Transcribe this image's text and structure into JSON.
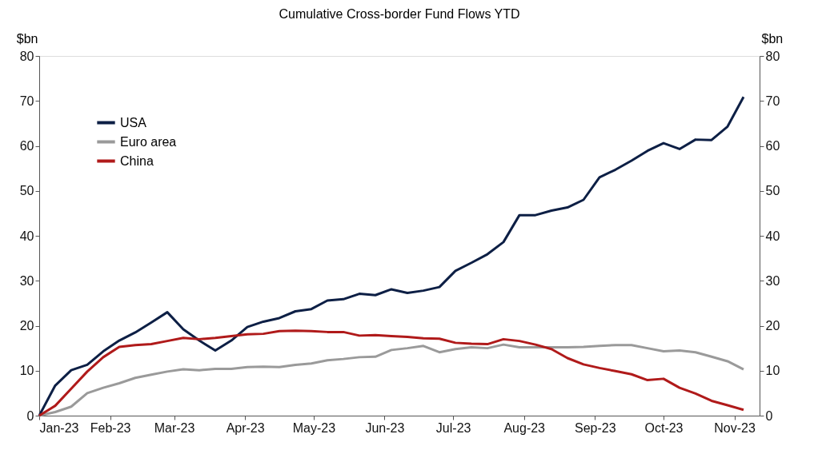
{
  "chart_data": {
    "type": "line",
    "title": "Cumulative Cross-border Fund Flows YTD",
    "ylabel": "$bn",
    "y2label": "$bn",
    "x": [
      "2023-01-01",
      "2023-01-08",
      "2023-01-15",
      "2023-01-22",
      "2023-01-29",
      "2023-02-05",
      "2023-02-12",
      "2023-02-19",
      "2023-02-26",
      "2023-03-05",
      "2023-03-12",
      "2023-03-19",
      "2023-03-26",
      "2023-04-02",
      "2023-04-09",
      "2023-04-16",
      "2023-04-23",
      "2023-04-30",
      "2023-05-07",
      "2023-05-14",
      "2023-05-21",
      "2023-05-28",
      "2023-06-04",
      "2023-06-11",
      "2023-06-18",
      "2023-06-25",
      "2023-07-02",
      "2023-07-09",
      "2023-07-16",
      "2023-07-23",
      "2023-07-30",
      "2023-08-06",
      "2023-08-13",
      "2023-08-20",
      "2023-08-27",
      "2023-09-03",
      "2023-09-10",
      "2023-09-17",
      "2023-09-24",
      "2023-10-01",
      "2023-10-08",
      "2023-10-15",
      "2023-10-22",
      "2023-10-29",
      "2023-11-05"
    ],
    "series": [
      {
        "name": "USA",
        "color": "#0d1f45",
        "values": [
          0,
          6.7,
          10.1,
          11.3,
          14.3,
          16.7,
          18.5,
          20.7,
          23,
          19.2,
          16.7,
          14.5,
          16.7,
          19.7,
          20.9,
          21.7,
          23.2,
          23.7,
          25.6,
          25.9,
          27.1,
          26.8,
          28.1,
          27.3,
          27.8,
          28.6,
          32.2,
          34,
          35.9,
          38.6,
          44.6,
          44.6,
          45.6,
          46.3,
          48,
          53,
          54.7,
          56.7,
          58.9,
          60.6,
          59.3,
          61.4,
          61.3,
          64.3,
          70.9
        ]
      },
      {
        "name": "Euro area",
        "color": "#9a9a9a",
        "values": [
          0,
          0.8,
          2,
          5,
          6.2,
          7.2,
          8.4,
          9.1,
          9.8,
          10.3,
          10.1,
          10.4,
          10.4,
          10.8,
          10.9,
          10.8,
          11.3,
          11.6,
          12.3,
          12.6,
          13,
          13.1,
          14.6,
          15,
          15.5,
          14.1,
          14.8,
          15.2,
          15,
          15.8,
          15.2,
          15.2,
          15.2,
          15.2,
          15.3,
          15.5,
          15.7,
          15.7,
          15,
          14.3,
          14.5,
          14.1,
          13.1,
          12.1,
          10.3
        ]
      },
      {
        "name": "China",
        "color": "#b01a1a",
        "values": [
          0,
          2.2,
          6,
          9.8,
          13,
          15.3,
          15.7,
          15.9,
          16.6,
          17.3,
          17,
          17.3,
          17.7,
          18.1,
          18.2,
          18.8,
          18.9,
          18.8,
          18.6,
          18.6,
          17.8,
          17.9,
          17.7,
          17.5,
          17.2,
          17.1,
          16.2,
          16,
          15.9,
          17,
          16.6,
          15.8,
          14.8,
          12.8,
          11.4,
          10.6,
          9.9,
          9.2,
          7.9,
          8.2,
          6.2,
          4.9,
          3.3,
          2.3,
          1.3
        ]
      }
    ],
    "xlim": [
      "2023-01-01",
      "2023-11-12"
    ],
    "xticks": [
      {
        "value": "2023-01-01",
        "label": "Jan-23"
      },
      {
        "value": "2023-02-01",
        "label": "Feb-23"
      },
      {
        "value": "2023-03-01",
        "label": "Mar-23"
      },
      {
        "value": "2023-04-01",
        "label": "Apr-23"
      },
      {
        "value": "2023-05-01",
        "label": "May-23"
      },
      {
        "value": "2023-06-01",
        "label": "Jun-23"
      },
      {
        "value": "2023-07-01",
        "label": "Jul-23"
      },
      {
        "value": "2023-08-01",
        "label": "Aug-23"
      },
      {
        "value": "2023-09-01",
        "label": "Sep-23"
      },
      {
        "value": "2023-10-01",
        "label": "Oct-23"
      },
      {
        "value": "2023-11-01",
        "label": "Nov-23"
      }
    ],
    "ylim": [
      0,
      80
    ],
    "yticks": [
      0,
      10,
      20,
      30,
      40,
      50,
      60,
      70,
      80
    ],
    "y2lim": [
      0,
      80
    ],
    "y2ticks": [
      0,
      10,
      20,
      30,
      40,
      50,
      60,
      70,
      80
    ],
    "grid": false,
    "legend": "top left",
    "marker": "none",
    "line_style": "solid"
  }
}
